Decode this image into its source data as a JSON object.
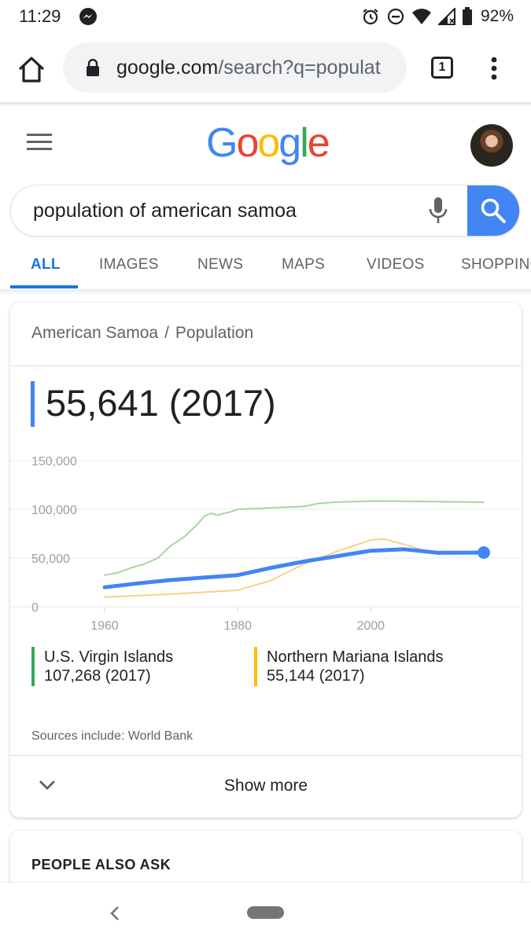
{
  "status_bar": {
    "time": "11:29",
    "battery": "92%"
  },
  "browser": {
    "url_host": "google.com",
    "url_path": "/search?q=populat",
    "tab_count": "1"
  },
  "header": {
    "logo_letters": [
      {
        "ch": "G",
        "color": "#4285f4"
      },
      {
        "ch": "o",
        "color": "#ea4335"
      },
      {
        "ch": "o",
        "color": "#fbbc05"
      },
      {
        "ch": "g",
        "color": "#4285f4"
      },
      {
        "ch": "l",
        "color": "#34a853"
      },
      {
        "ch": "e",
        "color": "#ea4335"
      }
    ]
  },
  "search": {
    "query": "population of american samoa"
  },
  "tabs": [
    {
      "label": "ALL",
      "active": true
    },
    {
      "label": "IMAGES",
      "active": false
    },
    {
      "label": "NEWS",
      "active": false
    },
    {
      "label": "MAPS",
      "active": false
    },
    {
      "label": "VIDEOS",
      "active": false
    },
    {
      "label": "SHOPPING",
      "active": false
    }
  ],
  "card": {
    "breadcrumb_1": "American Samoa",
    "breadcrumb_sep": "/",
    "breadcrumb_2": "Population",
    "value": "55,641 (2017)",
    "legend": [
      {
        "name": "U.S. Virgin Islands",
        "value": "107,268 (2017)",
        "color": "#34a853"
      },
      {
        "name": "Northern Mariana Islands",
        "value": "55,144 (2017)",
        "color": "#fbbc05"
      }
    ],
    "sources": "Sources include: World Bank",
    "show_more": "Show more"
  },
  "chart_data": {
    "type": "line",
    "title": "",
    "xlabel": "",
    "ylabel": "",
    "x_ticks": [
      "1960",
      "1980",
      "2000"
    ],
    "y_ticks": [
      "0",
      "50,000",
      "100,000",
      "150,000"
    ],
    "xlim": [
      1960,
      2017
    ],
    "ylim": [
      0,
      150000
    ],
    "grid": true,
    "series": [
      {
        "name": "U.S. Virgin Islands",
        "color": "#a8d5a0",
        "width": 2,
        "points": [
          [
            1960,
            32500
          ],
          [
            1962,
            35000
          ],
          [
            1964,
            40000
          ],
          [
            1966,
            44000
          ],
          [
            1968,
            50000
          ],
          [
            1970,
            63000
          ],
          [
            1972,
            72000
          ],
          [
            1974,
            85000
          ],
          [
            1975,
            93000
          ],
          [
            1976,
            96000
          ],
          [
            1977,
            94000
          ],
          [
            1978,
            96000
          ],
          [
            1979,
            97500
          ],
          [
            1980,
            100000
          ],
          [
            1985,
            101500
          ],
          [
            1990,
            103000
          ],
          [
            1992,
            106000
          ],
          [
            1995,
            107500
          ],
          [
            2000,
            108500
          ],
          [
            2005,
            108300
          ],
          [
            2010,
            107800
          ],
          [
            2015,
            107500
          ],
          [
            2017,
            107268
          ]
        ]
      },
      {
        "name": "Northern Mariana Islands",
        "color": "#f9cf8a",
        "width": 2,
        "points": [
          [
            1960,
            10000
          ],
          [
            1965,
            11500
          ],
          [
            1970,
            13000
          ],
          [
            1975,
            15000
          ],
          [
            1980,
            17000
          ],
          [
            1985,
            27000
          ],
          [
            1990,
            44000
          ],
          [
            1995,
            57000
          ],
          [
            2000,
            68500
          ],
          [
            2002,
            69500
          ],
          [
            2005,
            64000
          ],
          [
            2010,
            54000
          ],
          [
            2015,
            55000
          ],
          [
            2017,
            55144
          ]
        ]
      },
      {
        "name": "American Samoa",
        "color": "#4285f4",
        "width": 5,
        "endpoint": true,
        "points": [
          [
            1960,
            20000
          ],
          [
            1965,
            24000
          ],
          [
            1970,
            27500
          ],
          [
            1975,
            30000
          ],
          [
            1980,
            32500
          ],
          [
            1985,
            40000
          ],
          [
            1990,
            46500
          ],
          [
            1995,
            52000
          ],
          [
            2000,
            57500
          ],
          [
            2005,
            59000
          ],
          [
            2010,
            55500
          ],
          [
            2015,
            55600
          ],
          [
            2017,
            55641
          ]
        ]
      }
    ]
  },
  "people_also_ask": {
    "title": "PEOPLE ALSO ASK"
  }
}
